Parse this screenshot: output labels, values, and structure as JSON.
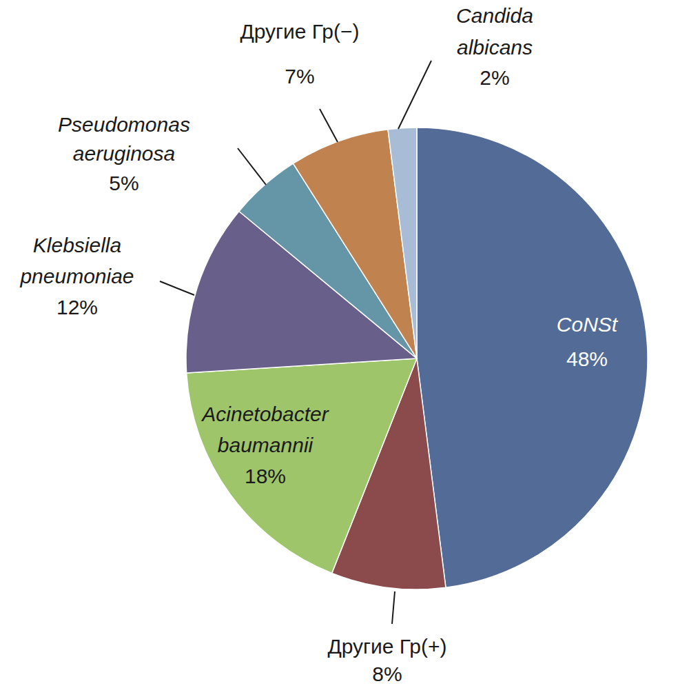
{
  "chart_data": {
    "type": "pie",
    "categories": [
      "CoNSt",
      "Другие Гр(+)",
      "Acinetobacter baumannii",
      "Klebsiella pneumoniae",
      "Pseudomonas aeruginosa",
      "Другие Гр(−)",
      "Candida albicans"
    ],
    "values": [
      48,
      8,
      18,
      12,
      5,
      7,
      2
    ],
    "value_labels": [
      "48%",
      "8%",
      "18%",
      "12%",
      "5%",
      "7%",
      "2%"
    ],
    "colors": [
      "#536b97",
      "#8b4a4c",
      "#9fc56a",
      "#695f8b",
      "#6496a8",
      "#c0834f",
      "#a9bcd6"
    ],
    "data_labels": true
  }
}
